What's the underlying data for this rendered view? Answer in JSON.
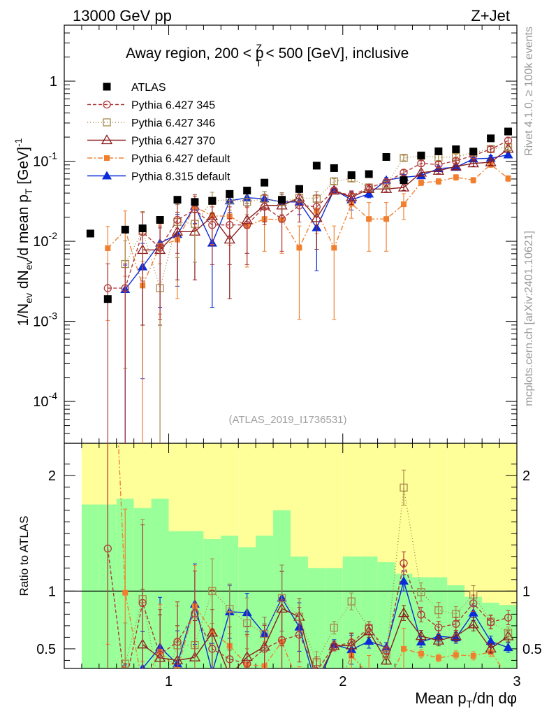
{
  "header": {
    "left": "13000 GeV pp",
    "right": "Z+Jet"
  },
  "sidebar": {
    "rivet": "Rivet 4.1.0, ≥ 100k events",
    "source": "mcplots.cern.ch [arXiv:2401.10621]"
  },
  "watermark": "(ATLAS_2019_I1736531)",
  "title": {
    "main": "Away region, 200 < p",
    "sup": "Z",
    "sub": "T",
    "tail": " < 500 [GeV], inclusive"
  },
  "ylabel_main": {
    "p1": "1/N",
    "s1": "ev",
    "p2": " dN",
    "s2": "ev",
    "p3": "/d mean p",
    "s3": "T",
    "p4": " [GeV]",
    "sup": "-1"
  },
  "ylabel_ratio": "Ratio to ATLAS",
  "xlabel": {
    "p1": "Mean p",
    "s1": "T",
    "p2": "/dη dφ"
  },
  "colors": {
    "atlas": "#000000",
    "p345": "#b03a3a",
    "p346": "#a8884a",
    "p370": "#8a1c1c",
    "p6def": "#f08030",
    "p8def": "#0b2cd8",
    "yellow": "#ffff99",
    "green": "#99ff99"
  },
  "chart_data": {
    "type": "scatter",
    "x": [
      0.55,
      0.65,
      0.75,
      0.85,
      0.95,
      1.05,
      1.15,
      1.25,
      1.35,
      1.45,
      1.55,
      1.65,
      1.75,
      1.85,
      1.95,
      2.05,
      2.15,
      2.25,
      2.35,
      2.45,
      2.55,
      2.65,
      2.75,
      2.85,
      2.95
    ],
    "xlim": [
      0.4,
      3.0
    ],
    "xticks": [
      1,
      2,
      3
    ],
    "main_ylim": [
      3e-05,
      5
    ],
    "main_yticks": [
      {
        "v": 0.0001,
        "b": "10",
        "e": "-4"
      },
      {
        "v": 0.001,
        "b": "10",
        "e": "-3"
      },
      {
        "v": 0.01,
        "b": "10",
        "e": "-2"
      },
      {
        "v": 0.1,
        "b": "10",
        "e": "-1"
      },
      {
        "v": 1,
        "b": "1",
        "e": ""
      }
    ],
    "ratio_ylim": [
      0.33,
      2.28
    ],
    "ratio_yticks": [
      0.5,
      1,
      2
    ],
    "series": [
      {
        "name": "ATLAS",
        "key": "atlas",
        "values": [
          0.0125,
          0.0019,
          0.014,
          0.0145,
          0.0185,
          0.033,
          0.031,
          0.032,
          0.039,
          0.043,
          0.054,
          0.033,
          0.045,
          0.088,
          0.082,
          0.067,
          0.069,
          0.113,
          0.058,
          0.118,
          0.133,
          0.141,
          0.132,
          0.193,
          0.235
        ]
      },
      {
        "name": "Pythia 6.427 345",
        "key": "p345",
        "values": [
          null,
          0.0026,
          0.0026,
          0.013,
          0.0083,
          0.0185,
          0.025,
          0.016,
          0.016,
          0.016,
          0.027,
          0.019,
          0.028,
          0.027,
          0.043,
          0.037,
          0.047,
          0.055,
          0.072,
          0.094,
          0.091,
          0.101,
          0.118,
          0.141,
          0.181
        ]
      },
      {
        "name": "Pythia 6.427 346",
        "key": "p346",
        "values": [
          null,
          null,
          0.0052,
          0.0135,
          0.0026,
          0.0175,
          0.0165,
          0.032,
          0.033,
          0.031,
          0.034,
          0.031,
          0.035,
          0.034,
          0.056,
          0.061,
          0.047,
          0.051,
          0.11,
          0.117,
          0.111,
          0.113,
          0.128,
          0.142,
          0.15
        ]
      },
      {
        "name": "Pythia 6.427 370",
        "key": "p370",
        "values": [
          null,
          null,
          null,
          0.0078,
          0.0078,
          0.0132,
          0.0132,
          0.0205,
          0.0105,
          0.0185,
          0.028,
          0.028,
          0.035,
          0.0195,
          0.043,
          0.0355,
          0.045,
          0.045,
          0.047,
          0.072,
          0.076,
          0.086,
          0.094,
          0.097,
          0.143
        ]
      },
      {
        "name": "Pythia 6.427 default",
        "key": "p6def",
        "values": [
          null,
          0.0082,
          0.0138,
          0.0028,
          0.0088,
          0.0105,
          0.027,
          0.0208,
          0.0205,
          0.0155,
          0.019,
          0.0185,
          0.0083,
          0.024,
          0.0083,
          0.0295,
          0.019,
          0.019,
          0.029,
          0.054,
          0.056,
          0.063,
          0.058,
          0.091,
          0.061
        ]
      },
      {
        "name": "Pythia 8.315 default",
        "key": "p8def",
        "values": [
          null,
          null,
          0.0025,
          0.0048,
          0.0095,
          0.0122,
          0.0275,
          0.0095,
          0.032,
          0.035,
          0.034,
          0.031,
          0.031,
          0.0148,
          0.044,
          0.033,
          0.039,
          0.058,
          0.063,
          0.066,
          0.081,
          0.084,
          0.107,
          0.109,
          0.12
        ]
      }
    ],
    "band_yellow": [
      [
        0.33,
        2.28
      ],
      [
        0.33,
        2.28
      ],
      [
        0.33,
        2.28
      ],
      [
        0.33,
        2.28
      ],
      [
        0.33,
        2.28
      ],
      [
        0.33,
        2.28
      ],
      [
        0.33,
        2.28
      ],
      [
        0.33,
        2.28
      ],
      [
        0.33,
        2.28
      ],
      [
        0.33,
        2.28
      ],
      [
        0.33,
        2.28
      ],
      [
        0.33,
        2.28
      ],
      [
        0.33,
        2.28
      ],
      [
        0.33,
        2.28
      ],
      [
        0.33,
        2.28
      ],
      [
        0.33,
        2.28
      ],
      [
        0.33,
        2.28
      ],
      [
        0.33,
        2.28
      ],
      [
        0.33,
        2.28
      ],
      [
        0.33,
        2.28
      ],
      [
        0.33,
        2.28
      ],
      [
        0.33,
        2.28
      ],
      [
        0.33,
        2.28
      ],
      [
        0.33,
        2.28
      ],
      [
        0.33,
        2.28
      ]
    ],
    "band_green": [
      [
        0.33,
        1.75
      ],
      [
        0.33,
        1.75
      ],
      [
        0.33,
        1.8
      ],
      [
        0.33,
        1.72
      ],
      [
        0.33,
        1.8
      ],
      [
        0.33,
        1.52
      ],
      [
        0.33,
        1.52
      ],
      [
        0.33,
        1.45
      ],
      [
        0.33,
        1.48
      ],
      [
        0.33,
        1.38
      ],
      [
        0.33,
        1.48
      ],
      [
        0.33,
        1.7
      ],
      [
        0.33,
        1.3
      ],
      [
        0.33,
        1.2
      ],
      [
        0.33,
        1.2
      ],
      [
        0.33,
        1.3
      ],
      [
        0.33,
        1.3
      ],
      [
        0.33,
        1.25
      ],
      [
        0.33,
        1.15
      ],
      [
        0.33,
        1.12
      ],
      [
        0.33,
        1.12
      ],
      [
        0.33,
        1.05
      ],
      [
        0.33,
        0.95
      ],
      [
        0.33,
        0.9
      ],
      [
        0.33,
        0.88
      ]
    ]
  }
}
